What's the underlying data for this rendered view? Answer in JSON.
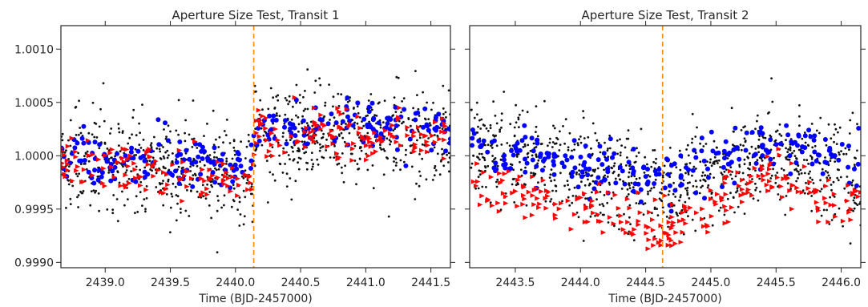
{
  "colors": {
    "background_points": "#111111",
    "series_blue": "#0000ff",
    "series_red": "#ff0000",
    "transit_line": "#ff8c00",
    "axes": "#262626"
  },
  "chart_data": [
    {
      "type": "scatter",
      "title": "Aperture Size Test, Transit 1",
      "xlabel": "Time (BJD-2457000)",
      "ylabel": "",
      "xlim": [
        2438.66,
        2441.65
      ],
      "ylim": [
        0.99895,
        1.00122
      ],
      "xticks": [
        2439.0,
        2439.5,
        2440.0,
        2440.5,
        2441.0,
        2441.5
      ],
      "xtick_labels": [
        "2439.0",
        "2439.5",
        "2440.0",
        "2440.5",
        "2441.0",
        "2441.5"
      ],
      "yticks": [
        0.999,
        0.9995,
        1.0,
        1.0005,
        1.001
      ],
      "ytick_labels": [
        "0.9990",
        "0.9995",
        "1.0000",
        "1.0005",
        "1.0010"
      ],
      "grid": false,
      "markers": [
        {
          "type": "vline",
          "x": 2440.14,
          "style": "dashed"
        }
      ],
      "series": [
        {
          "marker": "small dot",
          "x_range": [
            2438.66,
            2441.65
          ],
          "trend": [
            [
              2438.66,
              1.0
            ],
            [
              2440.13,
              0.9998
            ],
            [
              2440.15,
              1.0002
            ],
            [
              2441.65,
              1.0002
            ]
          ],
          "scatter_sd": 0.00022
        },
        {
          "marker": "circle",
          "x_range": [
            2438.66,
            2441.65
          ],
          "trend": [
            [
              2438.66,
              1.00002
            ],
            [
              2440.13,
              0.9999
            ],
            [
              2440.15,
              1.00026
            ],
            [
              2441.65,
              1.00028
            ]
          ],
          "scatter_sd": 0.00012
        },
        {
          "marker": "triangle",
          "x_range": [
            2438.66,
            2441.65
          ],
          "trend": [
            [
              2438.66,
              0.99995
            ],
            [
              2440.13,
              0.99975
            ],
            [
              2440.15,
              1.0002
            ],
            [
              2441.65,
              1.00018
            ]
          ],
          "scatter_sd": 0.00012
        }
      ]
    },
    {
      "type": "scatter",
      "title": "Aperture Size Test, Transit 2",
      "xlabel": "Time (BJD-2457000)",
      "ylabel": "",
      "xlim": [
        2443.15,
        2446.15
      ],
      "ylim": [
        0.99895,
        1.00122
      ],
      "xticks": [
        2443.5,
        2444.0,
        2444.5,
        2445.0,
        2445.5,
        2446.0
      ],
      "xtick_labels": [
        "2443.5",
        "2444.0",
        "2444.5",
        "2445.0",
        "2445.5",
        "2446.0"
      ],
      "yticks": [
        0.999,
        0.9995,
        1.0,
        1.0005,
        1.001
      ],
      "ytick_labels": [],
      "grid": false,
      "markers": [
        {
          "type": "vline",
          "x": 2444.63,
          "style": "dashed"
        }
      ],
      "series": [
        {
          "marker": "small dot",
          "x_range": [
            2443.15,
            2446.15
          ],
          "trend": [
            [
              2443.15,
              1.0001
            ],
            [
              2444.63,
              0.9997
            ],
            [
              2445.4,
              1.0
            ],
            [
              2446.15,
              0.9998
            ]
          ],
          "scatter_sd": 0.00022
        },
        {
          "marker": "circle",
          "x_range": [
            2443.15,
            2446.15
          ],
          "trend": [
            [
              2443.15,
              1.0001
            ],
            [
              2444.63,
              0.99975
            ],
            [
              2445.4,
              1.0001
            ],
            [
              2446.15,
              0.99995
            ]
          ],
          "scatter_sd": 0.00012
        },
        {
          "marker": "triangle",
          "x_range": [
            2443.15,
            2446.15
          ],
          "trend": [
            [
              2443.15,
              0.99975
            ],
            [
              2444.63,
              0.9993
            ],
            [
              2445.4,
              0.9998
            ],
            [
              2446.15,
              0.9996
            ]
          ],
          "scatter_sd": 0.00012
        }
      ]
    }
  ]
}
